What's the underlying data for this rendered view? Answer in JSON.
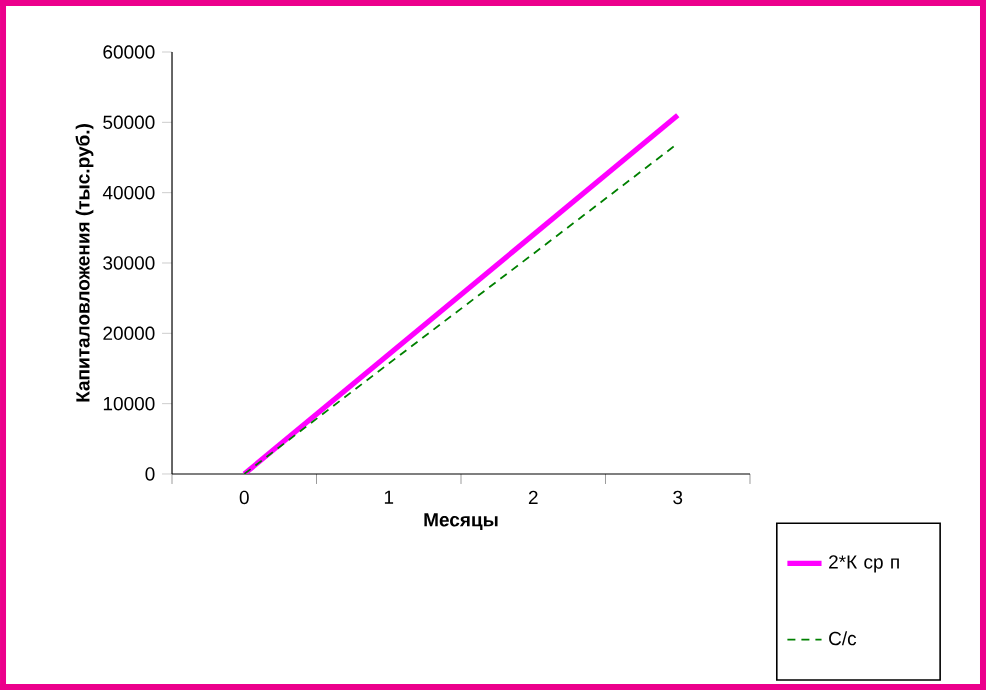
{
  "chart_data": {
    "type": "line",
    "xlabel": "Месяцы",
    "ylabel": "Капиталовложения (тыс.руб.)",
    "categories": [
      "0",
      "1",
      "2",
      "3"
    ],
    "series": [
      {
        "name": "2*К ср п",
        "color": "#ff00ff",
        "line_style": "solid",
        "values": [
          0,
          17000,
          34000,
          51000
        ]
      },
      {
        "name": "С/с",
        "color": "#008000",
        "line_style": "dashed",
        "values": [
          0,
          15700,
          31300,
          47000
        ]
      }
    ],
    "ylim": [
      0,
      60000
    ],
    "yticks": [
      0,
      10000,
      20000,
      30000,
      40000,
      50000,
      60000
    ],
    "grid": false,
    "legend": "bottom right",
    "marker": "none"
  }
}
